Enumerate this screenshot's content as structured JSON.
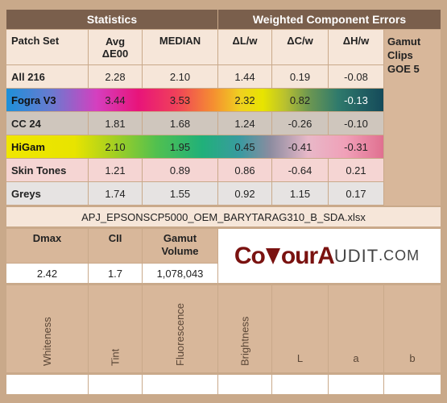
{
  "headers": {
    "statistics": "Statistics",
    "weighted": "Weighted Component Errors"
  },
  "columns": {
    "patch_set": "Patch Set",
    "avg_line1": "Avg",
    "avg_line2": "ΔE00",
    "median": "MEDIAN",
    "dl": "ΔL/w",
    "dc": "ΔC/w",
    "dh": "ΔH/w",
    "gamut_clips": "Gamut Clips GOE 5"
  },
  "rows": [
    {
      "name": "All 216",
      "avg": "2.28",
      "median": "2.10",
      "dl": "1.44",
      "dc": "0.19",
      "dh": "-0.08"
    },
    {
      "name": "Fogra V3",
      "avg": "3.44",
      "median": "3.53",
      "dl": "2.32",
      "dc": "0.82",
      "dh": "-0.13"
    },
    {
      "name": "CC 24",
      "avg": "1.81",
      "median": "1.68",
      "dl": "1.24",
      "dc": "-0.26",
      "dh": "-0.10"
    },
    {
      "name": "HiGam",
      "avg": "2.10",
      "median": "1.95",
      "dl": "0.45",
      "dc": "-0.41",
      "dh": "-0.31"
    },
    {
      "name": "Skin Tones",
      "avg": "1.21",
      "median": "0.89",
      "dl": "0.86",
      "dc": "-0.64",
      "dh": "0.21"
    },
    {
      "name": "Greys",
      "avg": "1.74",
      "median": "1.55",
      "dl": "0.92",
      "dc": "1.15",
      "dh": "0.17"
    }
  ],
  "filename": "APJ_EPSONSCP5000_OEM_BARYTARAG310_B_SDA.xlsx",
  "metrics": {
    "dmax_label": "Dmax",
    "cii_label": "CII",
    "gamut_volume_label": "Gamut Volume",
    "dmax": "2.42",
    "cii": "1.7",
    "gamut_volume": "1,078,043"
  },
  "logo": {
    "part1": "Co",
    "part2": "ourA",
    "part3": "UDIT",
    "part4": ".COM"
  },
  "bottom_labels": {
    "whiteness": "Whiteness",
    "tint": "Tint",
    "fluorescence": "Fluorescence",
    "brightness": "Brightness",
    "l": "L",
    "a": "a",
    "b": "b"
  },
  "colors": {
    "fogra_gradient": [
      "#1e90d8",
      "#d53fbf",
      "#e8147a",
      "#f44d6e",
      "#f0c020",
      "#e8e400",
      "#96b23a",
      "#2f7a6c",
      "#154a5a"
    ],
    "higam_gradient": [
      "#e8e000",
      "#a0d020",
      "#30c060",
      "#1fa888",
      "#808890",
      "#f0b0c0",
      "#e06080"
    ]
  }
}
